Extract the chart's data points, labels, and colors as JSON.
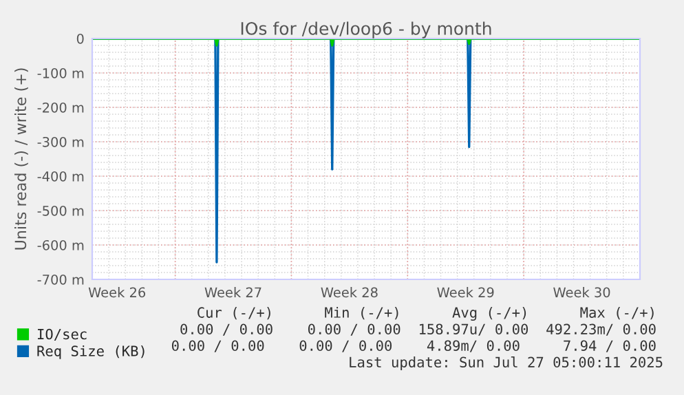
{
  "chart_data": {
    "type": "line",
    "title": "IOs for /dev/loop6 - by month",
    "ylabel": "Units read (-) / write (+)",
    "xlim": [
      "2025-06-25",
      "2025-07-28"
    ],
    "xticks": [
      {
        "value": "2025-06-26T12:00",
        "label": "Week 26"
      },
      {
        "value": "2025-07-03T12:00",
        "label": "Week 27"
      },
      {
        "value": "2025-07-10T12:00",
        "label": "Week 28"
      },
      {
        "value": "2025-07-17T12:00",
        "label": "Week 29"
      },
      {
        "value": "2025-07-24T12:00",
        "label": "Week 30"
      },
      {
        "value": "2025-06-30",
        "label": null
      },
      {
        "value": "2025-07-07",
        "label": null
      },
      {
        "value": "2025-07-14",
        "label": null
      },
      {
        "value": "2025-07-21",
        "label": null
      },
      {
        "value": "2025-07-28",
        "label": null
      }
    ],
    "ylim": [
      -700,
      0
    ],
    "yticks": [
      {
        "value": -700,
        "label": "-700 m"
      },
      {
        "value": -600,
        "label": "-600 m"
      },
      {
        "value": -500,
        "label": "-500 m"
      },
      {
        "value": -400,
        "label": "-400 m"
      },
      {
        "value": -300,
        "label": "-300 m"
      },
      {
        "value": -200,
        "label": "-200 m"
      },
      {
        "value": -100,
        "label": "-100 m"
      },
      0
    ],
    "grid": true,
    "legend": "bottom left",
    "series": [
      {
        "name": "Req Size (KB)",
        "color": "#0066b3",
        "x": [
          "2025-06-25",
          "2025-07-02T10:00",
          "2025-07-02T12:00",
          "2025-07-02T14:00",
          "2025-07-09T09:00",
          "2025-07-09T11:00",
          "2025-07-09T13:00",
          "2025-07-17T15:00",
          "2025-07-17T17:00",
          "2025-07-17T19:00",
          "2025-07-28"
        ],
        "values": [
          0,
          0,
          -650,
          0,
          0,
          -380,
          0,
          0,
          -315,
          0,
          0
        ]
      },
      {
        "name": "IO/sec",
        "color": "#00cc00",
        "x": [
          "2025-06-25",
          "2025-07-02T10:00",
          "2025-07-02T12:00",
          "2025-07-02T14:00",
          "2025-07-09T09:00",
          "2025-07-09T11:00",
          "2025-07-09T13:00",
          "2025-07-17T15:00",
          "2025-07-17T17:00",
          "2025-07-17T19:00",
          "2025-07-28"
        ],
        "values": [
          0,
          0,
          -20,
          0,
          0,
          -20,
          0,
          0,
          -15,
          0,
          0
        ]
      }
    ],
    "annotations": [
      " Cur (-/+)      Min (-/+)      Avg (-/+)      Max (-/+)",
      "0.00 / 0.00    0.00 / 0.00  158.97u/ 0.00  492.23m/ 0.00",
      "0.00 / 0.00    0.00 / 0.00    4.89m/ 0.00     7.94 / 0.00",
      "Last update: Sun Jul 27 05:00:11 2025"
    ]
  }
}
